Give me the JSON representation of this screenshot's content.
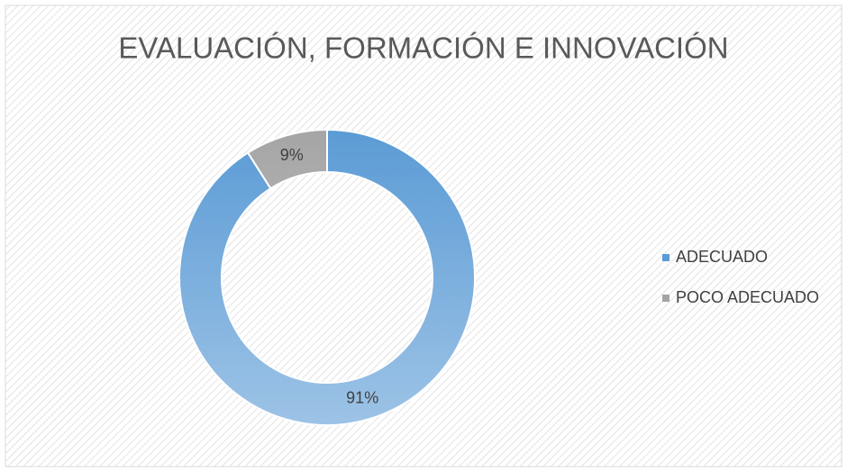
{
  "chart_data": {
    "type": "donut",
    "title": "EVALUACIÓN, FORMACIÓN E INNOVACIÓN",
    "categories": [
      "ADECUADO",
      "POCO ADECUADO"
    ],
    "values": [
      91,
      9
    ],
    "value_labels": [
      "91%",
      "9%"
    ],
    "colors": [
      "#5b9bd5",
      "#a5a5a5"
    ],
    "legend": "right"
  }
}
